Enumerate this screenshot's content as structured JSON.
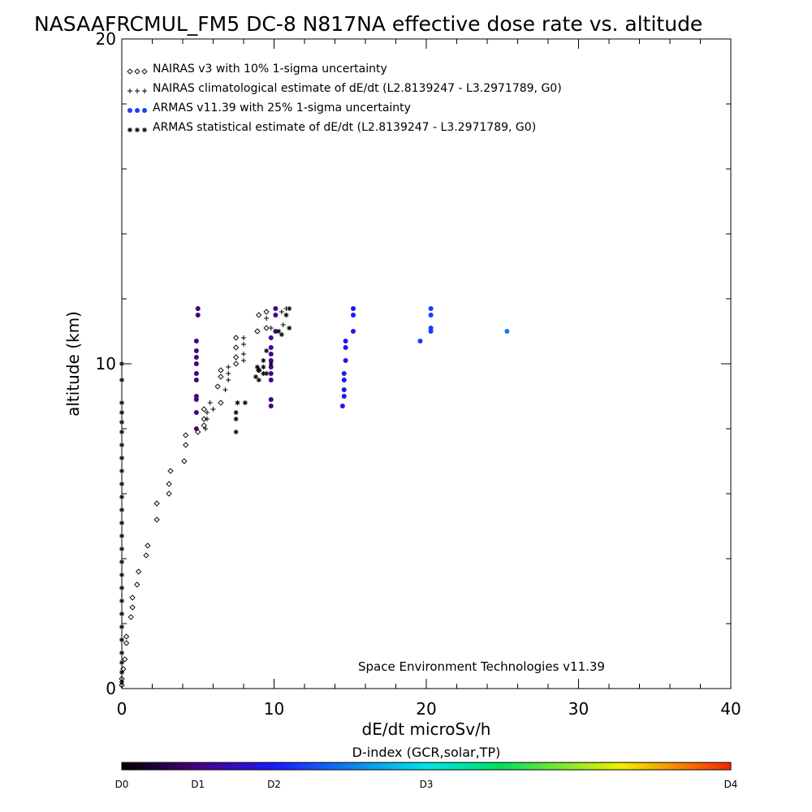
{
  "chart_data": {
    "type": "scatter",
    "title": "NASAAFRCMUL_FM5 DC-8   N817NA effective dose rate vs. altitude",
    "xlabel": "dE/dt microSv/h",
    "ylabel": "altitude (km)",
    "xlim": [
      0,
      40
    ],
    "ylim": [
      0,
      20
    ],
    "x_ticks": [
      "0",
      "10",
      "20",
      "30",
      "40"
    ],
    "y_ticks": [
      "0",
      "10",
      "20"
    ],
    "annotation": "Space Environment Technologies v11.39",
    "legend": {
      "placement": "top-left",
      "entries": [
        {
          "symbol": "◇◇◇",
          "label": "NAIRAS v3 with 10% 1-sigma uncertainty"
        },
        {
          "symbol": "+++",
          "label": "NAIRAS climatological estimate of dE/dt (L2.8139247 - L3.2971789, G0)"
        },
        {
          "symbol": "●●●",
          "label": "ARMAS v11.39 with 25% 1-sigma uncertainty"
        },
        {
          "symbol": "✱✱✱",
          "label": "ARMAS statistical estimate of dE/dt (L2.8139247 - L3.2971789, G0)"
        }
      ]
    },
    "colorbar": {
      "title": "D-index (GCR,solar,TP)",
      "labels": [
        "D0",
        "D1",
        "D2",
        "D3",
        "D4"
      ],
      "label_positions": [
        0,
        0.125,
        0.25,
        0.5,
        1.0
      ]
    },
    "series": [
      {
        "marker": "diamond",
        "color": "#000000",
        "points": [
          [
            0.0,
            0.1
          ],
          [
            0.0,
            0.3
          ],
          [
            0.1,
            0.6
          ],
          [
            0.2,
            0.9
          ],
          [
            0.3,
            1.4
          ],
          [
            0.3,
            1.6
          ],
          [
            0.6,
            2.2
          ],
          [
            0.7,
            2.5
          ],
          [
            0.7,
            2.8
          ],
          [
            1.0,
            3.2
          ],
          [
            1.1,
            3.6
          ],
          [
            1.6,
            4.1
          ],
          [
            1.7,
            4.4
          ],
          [
            2.3,
            5.2
          ],
          [
            2.3,
            5.7
          ],
          [
            3.1,
            6.0
          ],
          [
            3.1,
            6.3
          ],
          [
            3.2,
            6.7
          ],
          [
            4.1,
            7.0
          ],
          [
            4.2,
            7.5
          ],
          [
            4.2,
            7.8
          ],
          [
            5.0,
            7.9
          ],
          [
            5.4,
            8.1
          ],
          [
            5.4,
            8.3
          ],
          [
            5.4,
            8.6
          ],
          [
            6.5,
            8.8
          ],
          [
            6.3,
            9.3
          ],
          [
            6.5,
            9.6
          ],
          [
            6.5,
            9.8
          ],
          [
            7.5,
            10.0
          ],
          [
            7.5,
            10.2
          ],
          [
            7.5,
            10.5
          ],
          [
            7.5,
            10.8
          ],
          [
            8.9,
            11.0
          ],
          [
            9.0,
            11.5
          ],
          [
            9.5,
            11.1
          ],
          [
            9.5,
            11.6
          ],
          [
            9.0,
            9.8
          ]
        ]
      },
      {
        "marker": "plus",
        "color": "#000000",
        "points": [
          [
            5.5,
            8.0
          ],
          [
            5.6,
            8.3
          ],
          [
            5.6,
            8.5
          ],
          [
            5.8,
            8.8
          ],
          [
            6.8,
            9.2
          ],
          [
            7.0,
            9.5
          ],
          [
            7.0,
            9.7
          ],
          [
            7.0,
            9.9
          ],
          [
            8.0,
            10.1
          ],
          [
            8.0,
            10.3
          ],
          [
            8.0,
            10.6
          ],
          [
            8.0,
            10.8
          ],
          [
            9.5,
            11.4
          ],
          [
            9.8,
            11.1
          ],
          [
            10.5,
            11.6
          ],
          [
            10.8,
            11.7
          ],
          [
            10.6,
            11.2
          ],
          [
            6.0,
            8.6
          ]
        ]
      },
      {
        "marker": "circle",
        "color_by": "d_index",
        "points": [
          [
            4.9,
            8.0,
            0.12
          ],
          [
            4.9,
            8.5,
            0.12
          ],
          [
            4.9,
            8.9,
            0.12
          ],
          [
            4.9,
            9.0,
            0.12
          ],
          [
            4.9,
            9.5,
            0.12
          ],
          [
            4.9,
            9.7,
            0.12
          ],
          [
            4.9,
            10.0,
            0.12
          ],
          [
            4.9,
            10.2,
            0.12
          ],
          [
            4.9,
            10.4,
            0.12
          ],
          [
            4.9,
            10.7,
            0.12
          ],
          [
            5.0,
            11.5,
            0.12
          ],
          [
            5.0,
            11.7,
            0.12
          ],
          [
            9.8,
            8.7,
            0.14
          ],
          [
            9.8,
            8.9,
            0.14
          ],
          [
            9.8,
            9.5,
            0.14
          ],
          [
            9.8,
            9.7,
            0.14
          ],
          [
            9.8,
            9.9,
            0.14
          ],
          [
            9.8,
            10.1,
            0.14
          ],
          [
            9.8,
            10.3,
            0.14
          ],
          [
            9.8,
            10.5,
            0.14
          ],
          [
            9.8,
            10.8,
            0.14
          ],
          [
            10.1,
            11.0,
            0.14
          ],
          [
            10.1,
            11.5,
            0.14
          ],
          [
            10.1,
            11.7,
            0.14
          ],
          [
            14.5,
            8.7,
            0.23
          ],
          [
            14.6,
            9.0,
            0.23
          ],
          [
            14.6,
            9.2,
            0.23
          ],
          [
            14.6,
            9.5,
            0.23
          ],
          [
            14.6,
            9.7,
            0.23
          ],
          [
            14.7,
            10.1,
            0.23
          ],
          [
            14.7,
            10.5,
            0.23
          ],
          [
            14.7,
            10.7,
            0.23
          ],
          [
            15.2,
            11.0,
            0.23
          ],
          [
            15.2,
            11.5,
            0.23
          ],
          [
            15.2,
            11.7,
            0.23
          ],
          [
            19.6,
            10.7,
            0.29
          ],
          [
            20.3,
            11.0,
            0.29
          ],
          [
            20.3,
            11.1,
            0.29
          ],
          [
            20.3,
            11.5,
            0.29
          ],
          [
            20.3,
            11.7,
            0.29
          ],
          [
            25.3,
            11.0,
            0.37
          ]
        ]
      },
      {
        "marker": "asterisk",
        "color": "#000000",
        "points": [
          [
            0.0,
            0.2
          ],
          [
            0.0,
            0.5
          ],
          [
            0.0,
            0.8
          ],
          [
            0.0,
            1.1
          ],
          [
            0.0,
            1.5
          ],
          [
            0.0,
            1.9
          ],
          [
            0.0,
            2.3
          ],
          [
            0.0,
            2.7
          ],
          [
            0.0,
            3.1
          ],
          [
            0.0,
            3.5
          ],
          [
            0.0,
            3.9
          ],
          [
            0.0,
            4.3
          ],
          [
            0.0,
            4.7
          ],
          [
            0.0,
            5.1
          ],
          [
            0.0,
            5.5
          ],
          [
            0.0,
            5.9
          ],
          [
            0.0,
            6.3
          ],
          [
            0.0,
            6.7
          ],
          [
            0.0,
            7.1
          ],
          [
            0.0,
            7.5
          ],
          [
            0.0,
            7.9
          ],
          [
            0.0,
            8.2
          ],
          [
            0.0,
            8.5
          ],
          [
            0.0,
            8.8
          ],
          [
            0.0,
            9.5
          ],
          [
            0.0,
            10.0
          ],
          [
            7.5,
            7.9
          ],
          [
            7.5,
            8.3
          ],
          [
            7.5,
            8.5
          ],
          [
            7.6,
            8.8
          ],
          [
            8.1,
            8.8
          ],
          [
            8.8,
            9.6
          ],
          [
            9.0,
            9.8
          ],
          [
            9.0,
            9.5
          ],
          [
            9.3,
            9.7
          ],
          [
            9.3,
            10.1
          ],
          [
            9.5,
            9.7
          ],
          [
            9.5,
            10.4
          ],
          [
            9.8,
            10.0
          ],
          [
            10.3,
            11.0
          ],
          [
            10.5,
            10.9
          ],
          [
            10.8,
            11.5
          ],
          [
            11.0,
            11.7
          ],
          [
            11.0,
            11.1
          ],
          [
            9.3,
            9.9
          ],
          [
            8.9,
            9.9
          ]
        ]
      }
    ]
  }
}
